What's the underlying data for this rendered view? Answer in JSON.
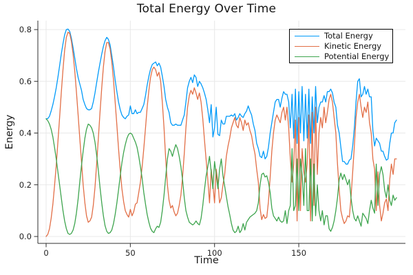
{
  "chart_data": {
    "type": "line",
    "title": "Total Energy Over Time",
    "xlabel": "Time",
    "ylabel": "Energy",
    "grid": true,
    "legend_position": "top-right",
    "x_start": 0,
    "x_step": 1,
    "n_points": 209,
    "xlim": [
      -5,
      213
    ],
    "ylim": [
      -0.027,
      0.835
    ],
    "x_ticks": [
      0,
      50,
      100,
      150
    ],
    "x_tick_labels": [
      "0",
      "50",
      "100",
      "150"
    ],
    "y_ticks": [
      0.0,
      0.2,
      0.4,
      0.6,
      0.8
    ],
    "y_tick_labels": [
      "0.0",
      "0.2",
      "0.4",
      "0.6",
      "0.8"
    ],
    "colors": {
      "grid": "#e8e8e8",
      "axis": "#2f2f2f",
      "tick_text": "#1f1f1f",
      "background": "#ffffff",
      "legend_border": "#000000"
    },
    "series": [
      {
        "name": "Total Energy",
        "color": "#009af9",
        "values": [
          0.455,
          0.456,
          0.465,
          0.485,
          0.51,
          0.54,
          0.575,
          0.615,
          0.66,
          0.705,
          0.745,
          0.78,
          0.8,
          0.802,
          0.793,
          0.767,
          0.73,
          0.69,
          0.65,
          0.615,
          0.59,
          0.565,
          0.53,
          0.51,
          0.495,
          0.49,
          0.49,
          0.495,
          0.52,
          0.555,
          0.595,
          0.635,
          0.67,
          0.705,
          0.735,
          0.757,
          0.77,
          0.762,
          0.74,
          0.7,
          0.655,
          0.605,
          0.56,
          0.52,
          0.49,
          0.47,
          0.46,
          0.455,
          0.465,
          0.47,
          0.505,
          0.475,
          0.475,
          0.49,
          0.475,
          0.48,
          0.48,
          0.495,
          0.51,
          0.545,
          0.585,
          0.62,
          0.647,
          0.665,
          0.67,
          0.675,
          0.66,
          0.67,
          0.655,
          0.62,
          0.58,
          0.53,
          0.5,
          0.48,
          0.44,
          0.43,
          0.43,
          0.435,
          0.43,
          0.43,
          0.43,
          0.45,
          0.47,
          0.52,
          0.575,
          0.6,
          0.615,
          0.595,
          0.625,
          0.615,
          0.58,
          0.6,
          0.59,
          0.575,
          0.555,
          0.53,
          0.49,
          0.44,
          0.51,
          0.385,
          0.42,
          0.5,
          0.395,
          0.39,
          0.45,
          0.435,
          0.435,
          0.465,
          0.465,
          0.465,
          0.47,
          0.465,
          0.475,
          0.45,
          0.46,
          0.475,
          0.465,
          0.46,
          0.475,
          0.485,
          0.505,
          0.485,
          0.47,
          0.435,
          0.41,
          0.36,
          0.34,
          0.31,
          0.305,
          0.33,
          0.3,
          0.31,
          0.345,
          0.4,
          0.44,
          0.48,
          0.52,
          0.53,
          0.53,
          0.5,
          0.535,
          0.56,
          0.55,
          0.55,
          0.52,
          0.42,
          0.55,
          0.38,
          0.57,
          0.36,
          0.56,
          0.4,
          0.58,
          0.37,
          0.55,
          0.38,
          0.57,
          0.36,
          0.54,
          0.4,
          0.58,
          0.44,
          0.5,
          0.52,
          0.52,
          0.545,
          0.52,
          0.56,
          0.56,
          0.57,
          0.555,
          0.52,
          0.5,
          0.43,
          0.4,
          0.345,
          0.29,
          0.29,
          0.28,
          0.28,
          0.295,
          0.3,
          0.35,
          0.42,
          0.52,
          0.6,
          0.61,
          0.54,
          0.55,
          0.58,
          0.55,
          0.57,
          0.54,
          0.54,
          0.41,
          0.35,
          0.38,
          0.37,
          0.36,
          0.33,
          0.33,
          0.31,
          0.295,
          0.3,
          0.36,
          0.4,
          0.4,
          0.44,
          0.45
        ]
      },
      {
        "name": "Kinetic Energy",
        "color": "#e26e46",
        "values": [
          0.0,
          0.008,
          0.03,
          0.07,
          0.125,
          0.195,
          0.275,
          0.365,
          0.46,
          0.555,
          0.645,
          0.72,
          0.77,
          0.79,
          0.785,
          0.755,
          0.705,
          0.64,
          0.56,
          0.47,
          0.38,
          0.29,
          0.2,
          0.13,
          0.08,
          0.055,
          0.06,
          0.075,
          0.12,
          0.19,
          0.28,
          0.38,
          0.48,
          0.575,
          0.655,
          0.715,
          0.75,
          0.75,
          0.725,
          0.675,
          0.605,
          0.52,
          0.43,
          0.34,
          0.255,
          0.185,
          0.135,
          0.1,
          0.085,
          0.075,
          0.105,
          0.08,
          0.095,
          0.125,
          0.13,
          0.17,
          0.21,
          0.27,
          0.34,
          0.42,
          0.5,
          0.565,
          0.615,
          0.645,
          0.655,
          0.645,
          0.62,
          0.635,
          0.6,
          0.52,
          0.42,
          0.3,
          0.2,
          0.14,
          0.11,
          0.12,
          0.095,
          0.08,
          0.09,
          0.12,
          0.16,
          0.23,
          0.32,
          0.42,
          0.5,
          0.545,
          0.565,
          0.55,
          0.575,
          0.555,
          0.53,
          0.555,
          0.52,
          0.455,
          0.375,
          0.295,
          0.22,
          0.13,
          0.26,
          0.2,
          0.13,
          0.26,
          0.21,
          0.13,
          0.15,
          0.2,
          0.24,
          0.31,
          0.35,
          0.38,
          0.42,
          0.44,
          0.46,
          0.43,
          0.42,
          0.46,
          0.44,
          0.41,
          0.45,
          0.43,
          0.44,
          0.41,
          0.39,
          0.35,
          0.32,
          0.26,
          0.21,
          0.11,
          0.065,
          0.085,
          0.07,
          0.075,
          0.135,
          0.23,
          0.33,
          0.4,
          0.45,
          0.47,
          0.455,
          0.44,
          0.48,
          0.5,
          0.45,
          0.5,
          0.42,
          0.3,
          0.21,
          0.28,
          0.45,
          0.06,
          0.46,
          0.1,
          0.34,
          0.25,
          0.21,
          0.28,
          0.47,
          0.06,
          0.48,
          0.12,
          0.5,
          0.24,
          0.4,
          0.46,
          0.42,
          0.5,
          0.44,
          0.48,
          0.53,
          0.55,
          0.52,
          0.46,
          0.4,
          0.28,
          0.18,
          0.1,
          0.07,
          0.05,
          0.06,
          0.08,
          0.075,
          0.15,
          0.25,
          0.35,
          0.46,
          0.52,
          0.55,
          0.5,
          0.46,
          0.5,
          0.48,
          0.52,
          0.44,
          0.4,
          0.3,
          0.26,
          0.1,
          0.25,
          0.12,
          0.06,
          0.09,
          0.13,
          0.145,
          0.1,
          0.22,
          0.28,
          0.24,
          0.3,
          0.3
        ]
      },
      {
        "name": "Potential Energy",
        "color": "#3da44d",
        "values": [
          0.455,
          0.448,
          0.435,
          0.415,
          0.385,
          0.345,
          0.3,
          0.25,
          0.2,
          0.15,
          0.1,
          0.06,
          0.03,
          0.012,
          0.008,
          0.012,
          0.025,
          0.05,
          0.09,
          0.145,
          0.21,
          0.275,
          0.33,
          0.38,
          0.415,
          0.435,
          0.43,
          0.42,
          0.4,
          0.365,
          0.315,
          0.255,
          0.19,
          0.13,
          0.08,
          0.042,
          0.02,
          0.012,
          0.015,
          0.025,
          0.05,
          0.085,
          0.13,
          0.18,
          0.235,
          0.285,
          0.325,
          0.355,
          0.38,
          0.395,
          0.4,
          0.395,
          0.38,
          0.365,
          0.345,
          0.31,
          0.27,
          0.225,
          0.17,
          0.125,
          0.085,
          0.055,
          0.032,
          0.02,
          0.015,
          0.03,
          0.04,
          0.035,
          0.055,
          0.1,
          0.16,
          0.23,
          0.3,
          0.34,
          0.33,
          0.31,
          0.335,
          0.355,
          0.34,
          0.31,
          0.27,
          0.22,
          0.15,
          0.1,
          0.075,
          0.055,
          0.05,
          0.045,
          0.05,
          0.06,
          0.05,
          0.045,
          0.07,
          0.12,
          0.18,
          0.235,
          0.27,
          0.31,
          0.25,
          0.185,
          0.29,
          0.24,
          0.185,
          0.26,
          0.3,
          0.235,
          0.195,
          0.155,
          0.115,
          0.085,
          0.05,
          0.025,
          0.015,
          0.02,
          0.04,
          0.015,
          0.025,
          0.05,
          0.025,
          0.055,
          0.065,
          0.075,
          0.08,
          0.085,
          0.09,
          0.1,
          0.13,
          0.2,
          0.24,
          0.245,
          0.23,
          0.235,
          0.21,
          0.17,
          0.11,
          0.08,
          0.07,
          0.06,
          0.075,
          0.06,
          0.055,
          0.06,
          0.1,
          0.05,
          0.1,
          0.12,
          0.34,
          0.1,
          0.12,
          0.3,
          0.1,
          0.3,
          0.24,
          0.12,
          0.34,
          0.1,
          0.1,
          0.3,
          0.06,
          0.28,
          0.08,
          0.2,
          0.1,
          0.06,
          0.1,
          0.045,
          0.08,
          0.08,
          0.03,
          0.02,
          0.035,
          0.06,
          0.1,
          0.15,
          0.22,
          0.245,
          0.22,
          0.24,
          0.22,
          0.2,
          0.22,
          0.15,
          0.1,
          0.07,
          0.06,
          0.08,
          0.06,
          0.04,
          0.09,
          0.08,
          0.07,
          0.05,
          0.1,
          0.14,
          0.11,
          0.09,
          0.28,
          0.12,
          0.24,
          0.27,
          0.24,
          0.18,
          0.15,
          0.2,
          0.14,
          0.12,
          0.16,
          0.14,
          0.15
        ]
      }
    ]
  }
}
